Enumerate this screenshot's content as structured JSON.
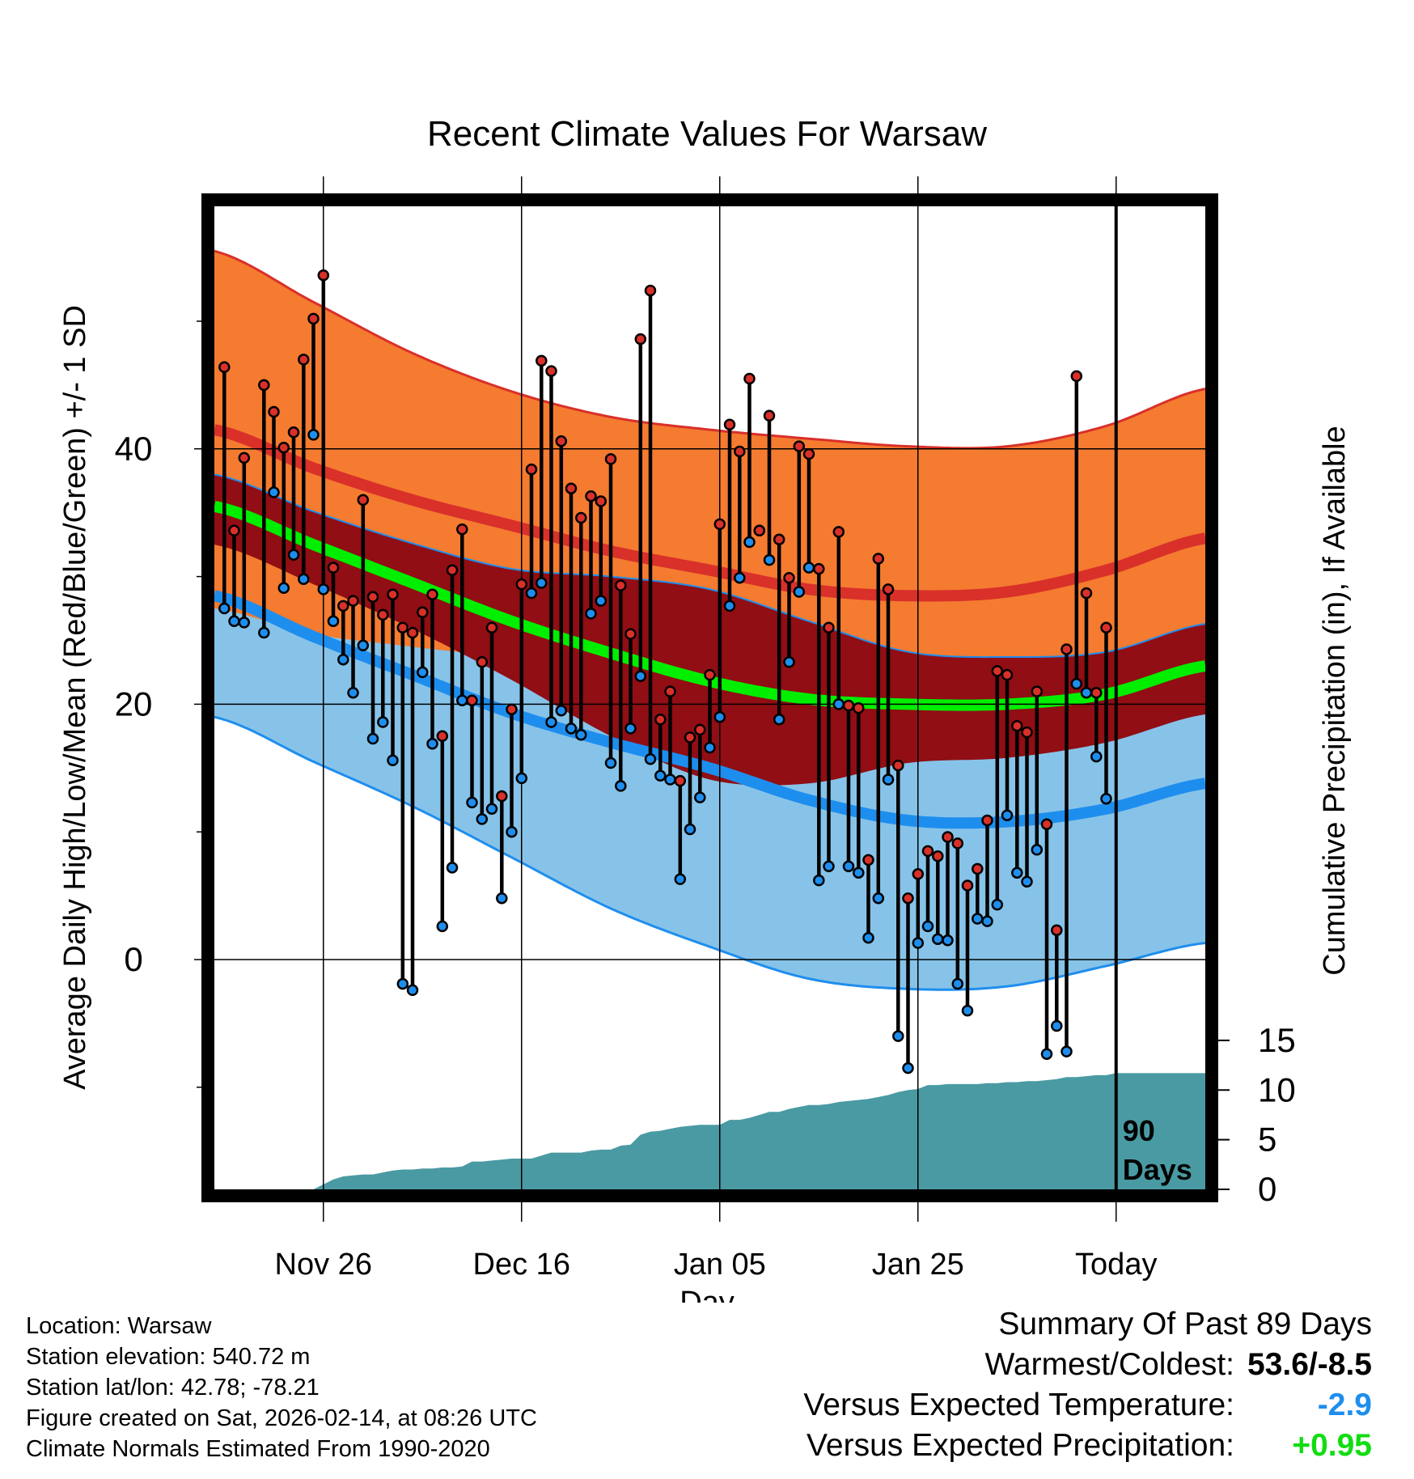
{
  "chart_data": {
    "type": "line",
    "title": "Recent Climate Values For Warsaw",
    "xlabel": "Day",
    "ylabel": "Average Daily High/Low/Mean (Red/Blue/Green) +/- 1 SD",
    "y2label": "Cumulative Precipitation (in), If Available",
    "x_ticks": [
      {
        "day": 10,
        "label": "Nov 26"
      },
      {
        "day": 30,
        "label": "Dec 16"
      },
      {
        "day": 50,
        "label": "Jan 05"
      },
      {
        "day": 70,
        "label": "Jan 25"
      },
      {
        "day": 90,
        "label": "Today"
      }
    ],
    "xlim": [
      -1,
      99
    ],
    "ylim": [
      -18,
      59
    ],
    "y_ticks": [
      0,
      20,
      40
    ],
    "y_minor_ticks": [
      -10,
      10,
      30,
      50
    ],
    "y2lim": [
      0,
      99
    ],
    "y2_ticks": [
      0,
      5,
      10,
      15
    ],
    "today_day": 90,
    "today_label": [
      "90",
      "Days"
    ],
    "colors": {
      "high_band": "#f47b30",
      "high_line": "#d9302a",
      "mean_band": "#900e14",
      "mean_line": "#00ee00",
      "low_band": "#87c3e8",
      "low_line": "#1e8eee",
      "precip": "#4a9aa3",
      "high_marker": "#d9302a",
      "low_marker": "#1e8eee"
    },
    "normals": {
      "days": [
        -1,
        9,
        19,
        29,
        39,
        49,
        59,
        69,
        79,
        89,
        99
      ],
      "high_mean": [
        41.5,
        38.5,
        36,
        34,
        32,
        30.5,
        29,
        28.5,
        28.8,
        30.5,
        33
      ],
      "high_upper": [
        55.5,
        51.5,
        47.5,
        44.5,
        42.5,
        41.5,
        40.8,
        40.2,
        40.2,
        41.8,
        44.7
      ],
      "mean_mean": [
        35.5,
        32.5,
        29.5,
        26.5,
        24,
        21.8,
        20.4,
        20,
        20,
        20.8,
        23
      ],
      "low_mean": [
        28.5,
        25.3,
        22.3,
        19.3,
        17,
        15,
        12.5,
        10.9,
        10.8,
        11.8,
        13.8
      ],
      "low_lower": [
        19,
        15.5,
        12,
        8,
        4,
        1,
        -1.5,
        -2.3,
        -2.1,
        -0.5,
        1.3
      ]
    },
    "series": [
      {
        "name": "Daily High",
        "values": [
          46.4,
          33.6,
          39.3,
          null,
          45.0,
          42.9,
          40.1,
          41.3,
          47.0,
          50.2,
          53.6,
          30.7,
          27.7,
          28.1,
          36.0,
          28.4,
          27.0,
          28.6,
          26.0,
          25.6,
          27.2,
          28.6,
          17.5,
          30.5,
          33.7,
          20.3,
          23.3,
          26.0,
          12.8,
          19.6,
          29.4,
          38.4,
          46.9,
          46.1,
          40.6,
          36.9,
          34.6,
          36.3,
          35.9,
          39.2,
          29.3,
          25.5,
          48.6,
          52.4,
          18.8,
          21.0,
          14.0,
          17.4,
          18.0,
          22.3,
          34.1,
          41.9,
          39.8,
          45.5,
          33.6,
          42.6,
          32.9,
          29.9,
          40.2,
          39.6,
          30.6,
          26.0,
          33.5,
          19.9,
          19.7,
          7.8,
          31.4,
          29.0,
          15.2,
          4.8,
          6.7,
          8.5,
          8.1,
          9.6,
          9.1,
          5.8,
          7.1,
          10.9,
          22.6,
          22.3,
          18.3,
          17.8,
          21.0,
          10.6,
          2.3,
          24.3,
          45.7,
          28.7,
          20.9,
          26.0
        ]
      },
      {
        "name": "Daily Low",
        "values": [
          27.5,
          26.5,
          26.4,
          null,
          25.6,
          36.6,
          29.1,
          31.7,
          29.8,
          41.1,
          29.0,
          26.5,
          23.5,
          20.9,
          24.6,
          17.3,
          18.6,
          15.6,
          -1.9,
          -2.4,
          22.5,
          16.9,
          2.6,
          7.2,
          20.3,
          12.3,
          11.0,
          11.8,
          4.8,
          10.0,
          14.2,
          28.7,
          29.5,
          18.6,
          19.5,
          18.1,
          17.6,
          27.1,
          28.1,
          15.4,
          13.6,
          18.1,
          22.2,
          15.7,
          14.4,
          14.1,
          6.3,
          10.2,
          12.7,
          16.6,
          19.0,
          27.7,
          29.9,
          32.7,
          33.6,
          31.3,
          18.8,
          23.3,
          28.8,
          30.7,
          6.2,
          7.3,
          20.0,
          7.3,
          6.8,
          1.7,
          4.8,
          14.1,
          -6.0,
          -8.5,
          1.3,
          2.6,
          1.6,
          1.5,
          -1.9,
          -4.0,
          3.2,
          3.0,
          4.3,
          11.3,
          6.8,
          6.1,
          8.6,
          -7.4,
          -5.2,
          -7.2,
          21.6,
          20.9,
          15.9,
          12.6
        ]
      }
    ],
    "precip_cumulative": [
      0,
      0,
      0,
      0,
      0,
      0,
      0,
      0,
      0,
      0,
      0.5,
      1.0,
      1.3,
      1.4,
      1.5,
      1.5,
      1.7,
      1.9,
      2.0,
      2.0,
      2.1,
      2.1,
      2.2,
      2.2,
      2.3,
      2.8,
      2.8,
      2.9,
      3.0,
      3.1,
      3.1,
      3.1,
      3.4,
      3.7,
      3.7,
      3.7,
      3.7,
      3.9,
      4.0,
      4.0,
      4.4,
      4.5,
      5.5,
      5.8,
      5.9,
      6.1,
      6.3,
      6.4,
      6.5,
      6.5,
      6.5,
      7.0,
      7.0,
      7.2,
      7.5,
      7.8,
      7.8,
      8.1,
      8.3,
      8.5,
      8.5,
      8.6,
      8.8,
      8.9,
      9.0,
      9.1,
      9.3,
      9.5,
      9.8,
      10.0,
      10.1,
      10.5,
      10.5,
      10.6,
      10.6,
      10.6,
      10.6,
      10.7,
      10.7,
      10.8,
      10.8,
      10.9,
      10.9,
      11.0,
      11.1,
      11.3,
      11.3,
      11.4,
      11.5,
      11.5,
      11.7,
      11.7,
      11.7,
      11.7,
      11.7,
      11.7,
      11.7,
      11.7,
      11.7,
      11.7
    ],
    "precip_days_start": 0
  },
  "footer": {
    "location": "Location: Warsaw",
    "elevation": "Station elevation: 540.72 m",
    "latlon": "Station lat/lon: 42.78; -78.21",
    "created": "Figure created on Sat, 2026-02-14, at 08:26 UTC",
    "normals_note": "Climate Normals Estimated From 1990-2020"
  },
  "summary": {
    "heading": "Summary Of Past 89 Days",
    "warmest_label": "Warmest/Coldest:",
    "warmest_value": "53.6/-8.5",
    "temp_label": "Versus Expected Temperature:",
    "temp_value": "-2.9",
    "temp_color": "#1e8eee",
    "precip_label": "Versus Expected Precipitation:",
    "precip_value": "+0.95",
    "precip_color": "#11dd11"
  }
}
